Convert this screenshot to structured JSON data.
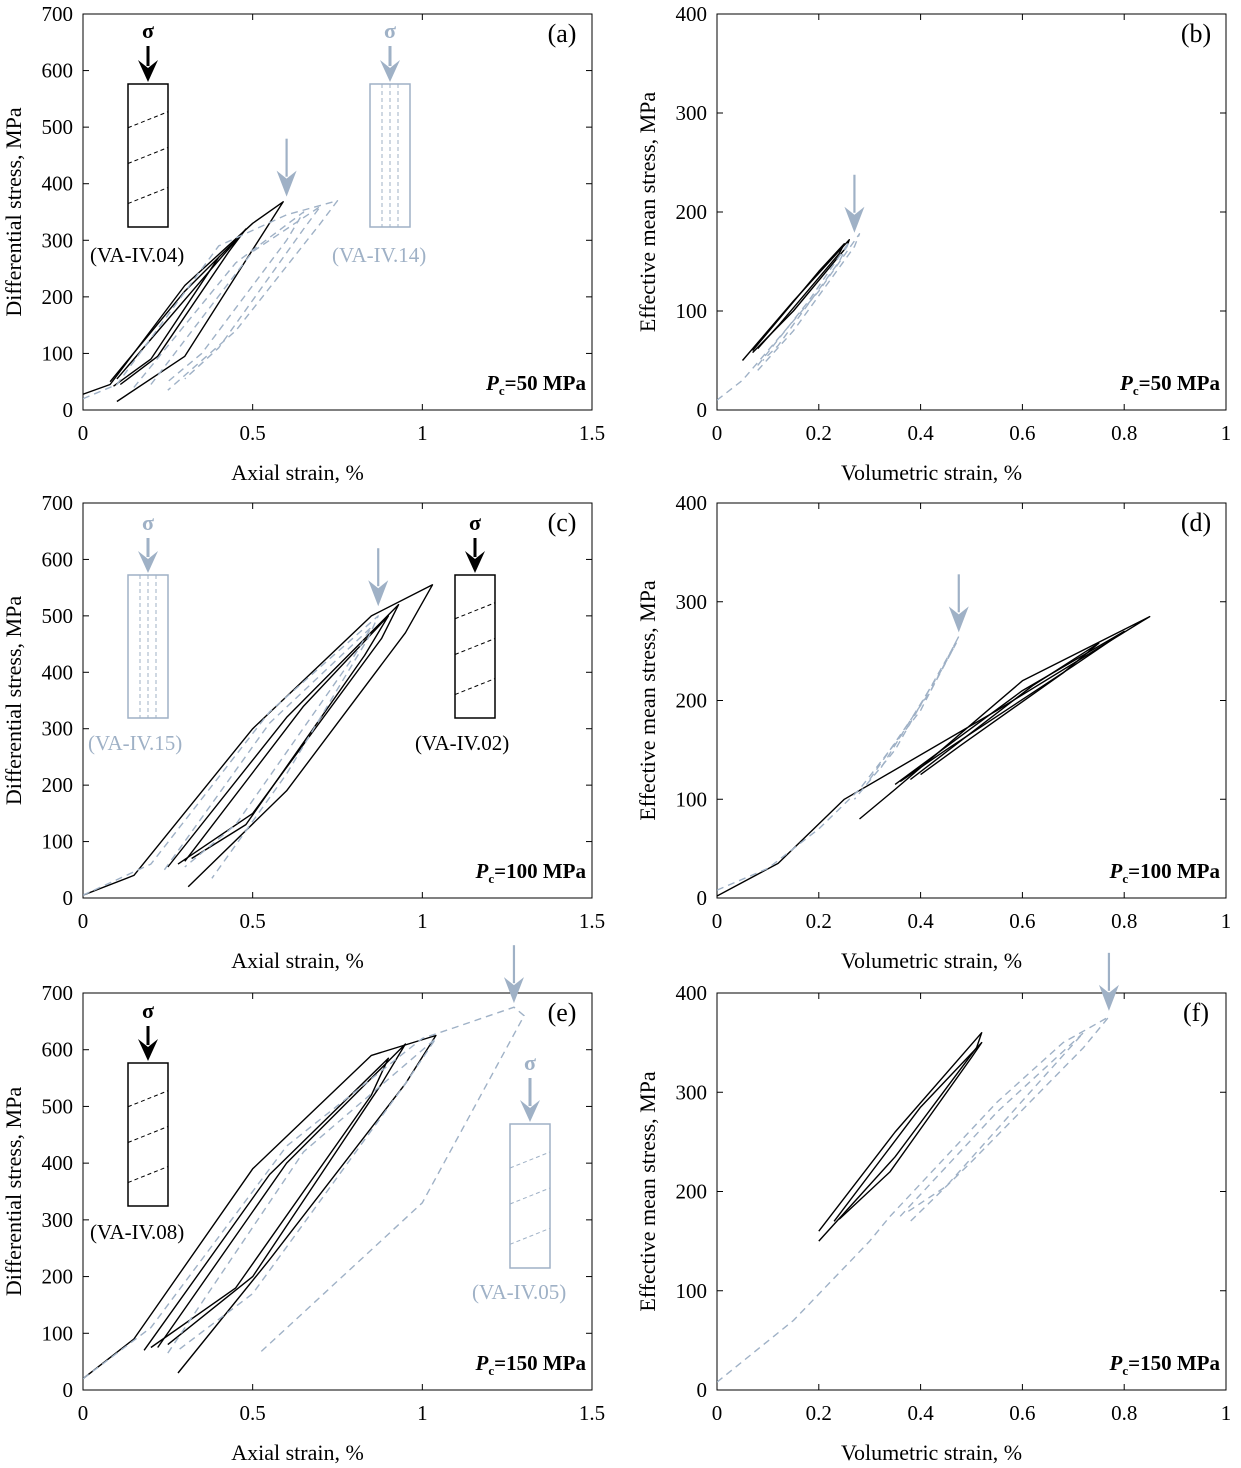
{
  "colors": {
    "black_series": "#000000",
    "blue_series": "#9fb1c6"
  },
  "chart_data": [
    {
      "id": "a",
      "type": "line",
      "panel_label": "(a)",
      "xlabel": "Axial strain, %",
      "ylabel": "Differential stress, MPa",
      "xlim": [
        0,
        1.5
      ],
      "ylim": [
        0,
        700
      ],
      "xticks": [
        0,
        0.5,
        1,
        1.5
      ],
      "xtick_labels": [
        "0",
        "0.5",
        "1",
        "1.5"
      ],
      "yticks": [
        0,
        100,
        200,
        300,
        400,
        500,
        600,
        700
      ],
      "ytick_labels": [
        "0",
        "100",
        "200",
        "300",
        "400",
        "500",
        "600",
        "700"
      ],
      "pc_text": "=50 MPa",
      "pc_symbol": "P",
      "pc_sub": "c",
      "failure_marker": [
        0.6,
        370
      ],
      "samples": [
        {
          "name": "(VA-IV.04)",
          "color": "black",
          "sigma": "σ",
          "fracture": "inclined"
        },
        {
          "name": "(VA-IV.14)",
          "color": "blue",
          "sigma": "σ",
          "fracture": "axial"
        }
      ],
      "series": [
        {
          "name": "VA-IV.04",
          "color": "black",
          "dash": false,
          "loops": [
            [
              0.0,
              28,
              0.08,
              45,
              0.3,
              220,
              0.5,
              330,
              0.59,
              368,
              0.56,
              340,
              0.3,
              95,
              0.1,
              15
            ],
            [
              0.08,
              50,
              0.3,
              210,
              0.45,
              300,
              0.4,
              270,
              0.2,
              90,
              0.09,
              42
            ],
            [
              0.1,
              55,
              0.35,
              230,
              0.48,
              320,
              0.43,
              280,
              0.22,
              95,
              0.11,
              45
            ]
          ]
        },
        {
          "name": "VA-IV.14",
          "color": "blue",
          "dash": true,
          "loops": [
            [
              0.0,
              20,
              0.1,
              45,
              0.4,
              290,
              0.6,
              345,
              0.75,
              370,
              0.7,
              330,
              0.45,
              140,
              0.25,
              35
            ],
            [
              0.15,
              40,
              0.45,
              260,
              0.65,
              350,
              0.6,
              300,
              0.35,
              100,
              0.25,
              50
            ],
            [
              0.2,
              45,
              0.5,
              280,
              0.7,
              360,
              0.65,
              320,
              0.4,
              110,
              0.3,
              55
            ]
          ]
        }
      ]
    },
    {
      "id": "b",
      "type": "line",
      "panel_label": "(b)",
      "xlabel": "Volumetric strain, %",
      "ylabel": "Effective mean stress, MPa",
      "xlim": [
        0,
        1
      ],
      "ylim": [
        0,
        400
      ],
      "xticks": [
        0,
        0.2,
        0.4,
        0.6,
        0.8,
        1
      ],
      "xtick_labels": [
        "0",
        "0.2",
        "0.4",
        "0.6",
        "0.8",
        "1"
      ],
      "yticks": [
        0,
        100,
        200,
        300,
        400
      ],
      "ytick_labels": [
        "0",
        "100",
        "200",
        "300",
        "400"
      ],
      "pc_text": "=50 MPa",
      "pc_symbol": "P",
      "pc_sub": "c",
      "failure_marker": [
        0.27,
        175
      ],
      "series": [
        {
          "name": "VA-IV.04",
          "color": "black",
          "dash": false,
          "loops": [
            [
              0.05,
              50,
              0.15,
              110,
              0.26,
              172,
              0.255,
              165,
              0.15,
              100,
              0.07,
              58
            ],
            [
              0.07,
              60,
              0.2,
              140,
              0.25,
              168,
              0.24,
              158,
              0.12,
              85,
              0.08,
              62
            ]
          ]
        },
        {
          "name": "VA-IV.14",
          "color": "blue",
          "dash": true,
          "loops": [
            [
              0.0,
              10,
              0.05,
              30,
              0.1,
              60,
              0.2,
              120,
              0.28,
              178,
              0.27,
              165,
              0.15,
              80,
              0.08,
              40
            ],
            [
              0.08,
              45,
              0.18,
              110,
              0.26,
              170,
              0.24,
              150,
              0.12,
              65,
              0.09,
              50
            ]
          ]
        }
      ]
    },
    {
      "id": "c",
      "type": "line",
      "panel_label": "(c)",
      "xlabel": "Axial strain, %",
      "ylabel": "Differential stress, MPa",
      "xlim": [
        0,
        1.5
      ],
      "ylim": [
        0,
        700
      ],
      "xticks": [
        0,
        0.5,
        1,
        1.5
      ],
      "xtick_labels": [
        "0",
        "0.5",
        "1",
        "1.5"
      ],
      "yticks": [
        0,
        100,
        200,
        300,
        400,
        500,
        600,
        700
      ],
      "ytick_labels": [
        "0",
        "100",
        "200",
        "300",
        "400",
        "500",
        "600",
        "700"
      ],
      "pc_text": "=100 MPa",
      "pc_symbol": "P",
      "pc_sub": "c",
      "failure_marker": [
        0.87,
        510
      ],
      "samples": [
        {
          "name": "(VA-IV.15)",
          "color": "blue",
          "sigma": "σ",
          "fracture": "axial"
        },
        {
          "name": "(VA-IV.02)",
          "color": "black",
          "sigma": "σ",
          "fracture": "inclined"
        }
      ],
      "series": [
        {
          "name": "VA-IV.02",
          "color": "black",
          "dash": false,
          "loops": [
            [
              0.0,
              5,
              0.15,
              40,
              0.5,
              300,
              0.85,
              500,
              1.03,
              555,
              0.95,
              470,
              0.6,
              190,
              0.31,
              20
            ],
            [
              0.25,
              55,
              0.6,
              320,
              0.93,
              520,
              0.88,
              460,
              0.5,
              150,
              0.28,
              60
            ],
            [
              0.3,
              65,
              0.65,
              340,
              0.9,
              500,
              0.83,
              430,
              0.48,
              130,
              0.32,
              70
            ]
          ]
        },
        {
          "name": "VA-IV.15",
          "color": "blue",
          "dash": true,
          "loops": [
            [
              0.0,
              5,
              0.2,
              60,
              0.55,
              330,
              0.87,
              500,
              0.84,
              460,
              0.6,
              220,
              0.38,
              35
            ],
            [
              0.24,
              50,
              0.55,
              310,
              0.85,
              480,
              0.8,
              430,
              0.45,
              130,
              0.3,
              55
            ]
          ]
        }
      ]
    },
    {
      "id": "d",
      "type": "line",
      "panel_label": "(d)",
      "xlabel": "Volumetric strain, %",
      "ylabel": "Effective mean stress, MPa",
      "xlim": [
        0,
        1
      ],
      "ylim": [
        0,
        400
      ],
      "xticks": [
        0,
        0.2,
        0.4,
        0.6,
        0.8,
        1
      ],
      "xtick_labels": [
        "0",
        "0.2",
        "0.4",
        "0.6",
        "0.8",
        "1"
      ],
      "yticks": [
        0,
        100,
        200,
        300,
        400
      ],
      "ytick_labels": [
        "0",
        "100",
        "200",
        "300",
        "400"
      ],
      "pc_text": "=100 MPa",
      "pc_symbol": "P",
      "pc_sub": "c",
      "failure_marker": [
        0.475,
        265
      ],
      "series": [
        {
          "name": "VA-IV.02",
          "color": "black",
          "dash": false,
          "loops": [
            [
              0.0,
              2,
              0.12,
              35,
              0.25,
              100,
              0.55,
              190,
              0.85,
              285,
              0.6,
              220,
              0.35,
              110,
              0.28,
              80
            ],
            [
              0.35,
              115,
              0.6,
              210,
              0.8,
              270,
              0.7,
              235,
              0.45,
              150,
              0.36,
              118
            ],
            [
              0.38,
              120,
              0.62,
              215,
              0.75,
              258,
              0.68,
              228,
              0.48,
              155,
              0.4,
              125
            ]
          ]
        },
        {
          "name": "VA-IV.15",
          "color": "blue",
          "dash": true,
          "loops": [
            [
              0.0,
              8,
              0.1,
              30,
              0.2,
              70,
              0.28,
              110,
              0.4,
              190,
              0.475,
              265,
              0.46,
              250,
              0.35,
              150,
              0.27,
              100
            ],
            [
              0.3,
              120,
              0.42,
              210,
              0.47,
              258,
              0.44,
              230,
              0.32,
              130
            ]
          ]
        }
      ]
    },
    {
      "id": "e",
      "type": "line",
      "panel_label": "(e)",
      "xlabel": "Axial strain, %",
      "ylabel": "Differential stress, MPa",
      "xlim": [
        0,
        1.5
      ],
      "ylim": [
        0,
        700
      ],
      "xticks": [
        0,
        0.5,
        1,
        1.5
      ],
      "xtick_labels": [
        "0",
        "0.5",
        "1",
        "1.5"
      ],
      "yticks": [
        0,
        100,
        200,
        300,
        400,
        500,
        600,
        700
      ],
      "ytick_labels": [
        "0",
        "100",
        "200",
        "300",
        "400",
        "500",
        "600",
        "700"
      ],
      "pc_text": "=150 MPa",
      "pc_symbol": "P",
      "pc_sub": "c",
      "failure_marker": [
        1.27,
        675
      ],
      "samples": [
        {
          "name": "(VA-IV.08)",
          "color": "black",
          "sigma": "σ",
          "fracture": "inclined"
        },
        {
          "name": "(VA-IV.05)",
          "color": "blue",
          "sigma": "σ",
          "fracture": "inclined"
        }
      ],
      "series": [
        {
          "name": "VA-IV.08",
          "color": "black",
          "dash": false,
          "loops": [
            [
              0.0,
              20,
              0.15,
              90,
              0.5,
              390,
              0.85,
              590,
              1.04,
              625,
              0.95,
              540,
              0.55,
              230,
              0.28,
              30
            ],
            [
              0.18,
              70,
              0.55,
              380,
              0.9,
              585,
              0.85,
              520,
              0.45,
              180,
              0.2,
              75
            ],
            [
              0.22,
              75,
              0.6,
              400,
              0.95,
              610,
              0.88,
              540,
              0.5,
              200,
              0.25,
              80
            ]
          ]
        },
        {
          "name": "VA-IV.05",
          "color": "blue",
          "dash": true,
          "loops": [
            [
              0.0,
              20,
              0.2,
              110,
              0.6,
              430,
              1.0,
              620,
              1.1,
              640,
              1.27,
              675,
              1.3,
              660,
              1.0,
              330,
              0.52,
              65
            ],
            [
              0.25,
              65,
              0.65,
              420,
              1.04,
              620,
              0.95,
              540,
              0.5,
              170,
              0.28,
              70
            ]
          ]
        }
      ]
    },
    {
      "id": "f",
      "type": "line",
      "panel_label": "(f)",
      "xlabel": "Volumetric strain, %",
      "ylabel": "Effective mean stress, MPa",
      "xlim": [
        0,
        1
      ],
      "ylim": [
        0,
        400
      ],
      "xticks": [
        0,
        0.2,
        0.4,
        0.6,
        0.8,
        1
      ],
      "xtick_labels": [
        "0",
        "0.2",
        "0.4",
        "0.6",
        "0.8",
        "1"
      ],
      "yticks": [
        0,
        100,
        200,
        300,
        400
      ],
      "ytick_labels": [
        "0",
        "100",
        "200",
        "300",
        "400"
      ],
      "pc_text": "=150 MPa",
      "pc_symbol": "P",
      "pc_sub": "c",
      "failure_marker": [
        0.77,
        378
      ],
      "series": [
        {
          "name": "VA-IV.08",
          "color": "black",
          "dash": false,
          "loops": [
            [
              0.2,
              160,
              0.35,
              260,
              0.52,
              360,
              0.51,
              345,
              0.35,
              235,
              0.2,
              150
            ],
            [
              0.23,
              170,
              0.4,
              285,
              0.52,
              350,
              0.5,
              335,
              0.34,
              220,
              0.24,
              172
            ]
          ]
        },
        {
          "name": "VA-IV.05",
          "color": "blue",
          "dash": true,
          "loops": [
            [
              0.0,
              8,
              0.15,
              70,
              0.3,
              150,
              0.34,
              175,
              0.55,
              290,
              0.68,
              350,
              0.77,
              376,
              0.72,
              345,
              0.5,
              230,
              0.38,
              170
            ],
            [
              0.36,
              175,
              0.55,
              280,
              0.72,
              360,
              0.65,
              320,
              0.45,
              205,
              0.37,
              178
            ]
          ]
        }
      ]
    }
  ]
}
